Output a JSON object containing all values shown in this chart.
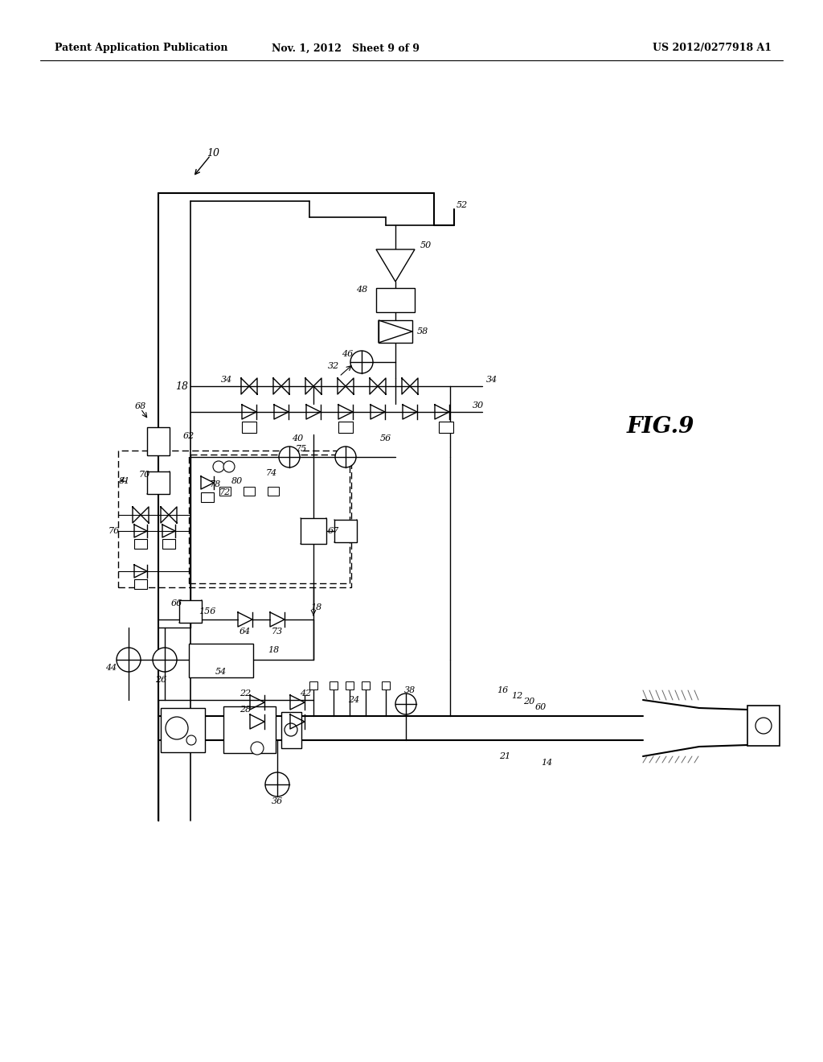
{
  "bg_color": "#ffffff",
  "header_left": "Patent Application Publication",
  "header_mid": "Nov. 1, 2012   Sheet 9 of 9",
  "header_right": "US 2012/0277918 A1",
  "fig_label": "FIG.9",
  "lw": 1.0
}
